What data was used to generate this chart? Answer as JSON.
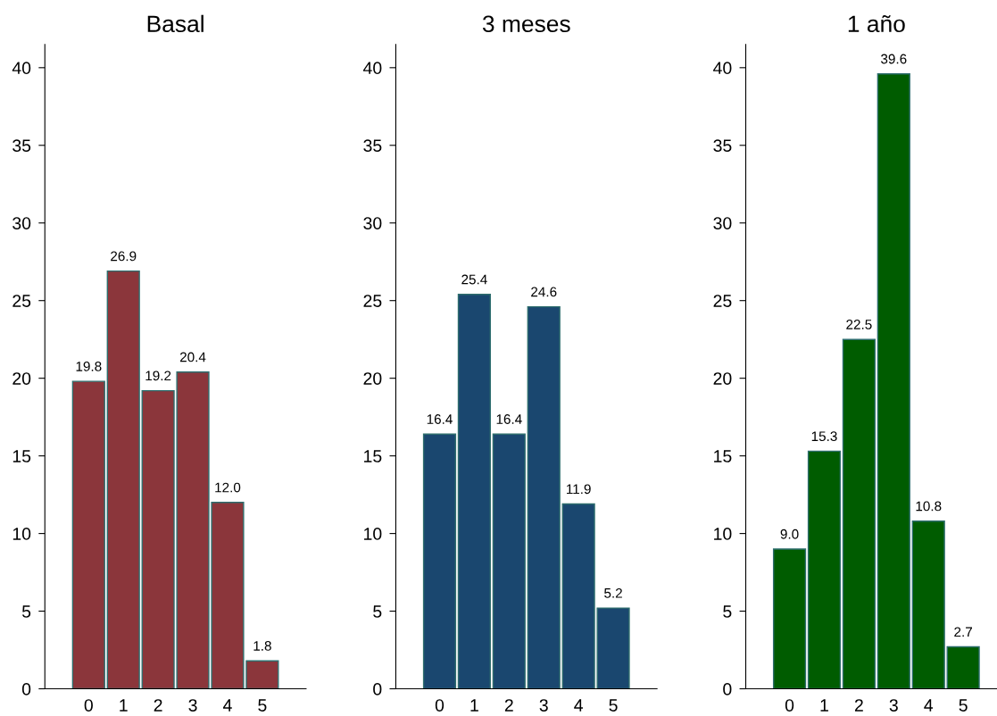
{
  "chart_data": [
    {
      "type": "bar",
      "title": "Basal",
      "categories": [
        "0",
        "1",
        "2",
        "3",
        "4",
        "5"
      ],
      "values": [
        19.8,
        26.9,
        19.2,
        20.4,
        12.0,
        1.8
      ],
      "value_labels": [
        "19.8",
        "26.9",
        "19.2",
        "20.4",
        "12.0",
        "1.8"
      ],
      "color": "#8b363b",
      "ylim": [
        0,
        41.5
      ],
      "yticks": [
        0,
        5,
        10,
        15,
        20,
        25,
        30,
        35,
        40
      ],
      "grid": false,
      "legend": false
    },
    {
      "type": "bar",
      "title": "3 meses",
      "categories": [
        "0",
        "1",
        "2",
        "3",
        "4",
        "5"
      ],
      "values": [
        16.4,
        25.4,
        16.4,
        24.6,
        11.9,
        5.2
      ],
      "value_labels": [
        "16.4",
        "25.4",
        "16.4",
        "24.6",
        "11.9",
        "5.2"
      ],
      "color": "#1a476f",
      "ylim": [
        0,
        41.5
      ],
      "yticks": [
        0,
        5,
        10,
        15,
        20,
        25,
        30,
        35,
        40
      ],
      "grid": false,
      "legend": false
    },
    {
      "type": "bar",
      "title": "1 año",
      "categories": [
        "0",
        "1",
        "2",
        "3",
        "4",
        "5"
      ],
      "values": [
        9.0,
        15.3,
        22.5,
        39.6,
        10.8,
        2.7
      ],
      "value_labels": [
        "9.0",
        "15.3",
        "22.5",
        "39.6",
        "10.8",
        "2.7"
      ],
      "color": "#005c00",
      "ylim": [
        0,
        41.5
      ],
      "yticks": [
        0,
        5,
        10,
        15,
        20,
        25,
        30,
        35,
        40
      ],
      "grid": false,
      "legend": false
    }
  ]
}
